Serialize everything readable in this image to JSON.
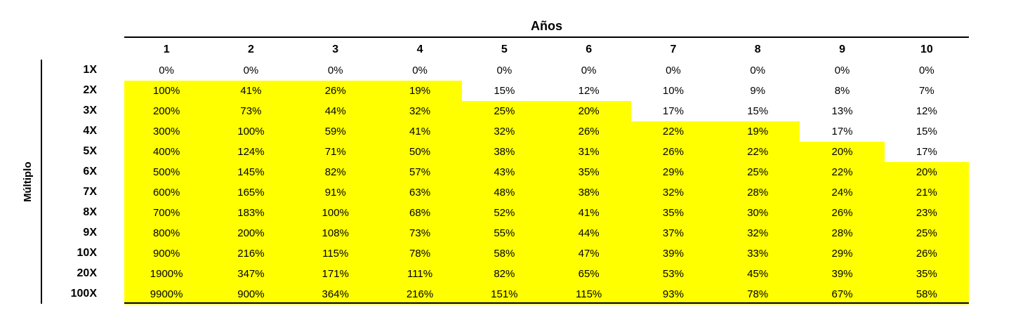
{
  "chart_data": {
    "type": "table",
    "title": "Años",
    "row_axis_label": "Múltiplo",
    "columns": [
      "1",
      "2",
      "3",
      "4",
      "5",
      "6",
      "7",
      "8",
      "9",
      "10"
    ],
    "rows": [
      {
        "label": "1X",
        "values": [
          "0%",
          "0%",
          "0%",
          "0%",
          "0%",
          "0%",
          "0%",
          "0%",
          "0%",
          "0%"
        ],
        "highlighted_cols": 0
      },
      {
        "label": "2X",
        "values": [
          "100%",
          "41%",
          "26%",
          "19%",
          "15%",
          "12%",
          "10%",
          "9%",
          "8%",
          "7%"
        ],
        "highlighted_cols": 4
      },
      {
        "label": "3X",
        "values": [
          "200%",
          "73%",
          "44%",
          "32%",
          "25%",
          "20%",
          "17%",
          "15%",
          "13%",
          "12%"
        ],
        "highlighted_cols": 6
      },
      {
        "label": "4X",
        "values": [
          "300%",
          "100%",
          "59%",
          "41%",
          "32%",
          "26%",
          "22%",
          "19%",
          "17%",
          "15%"
        ],
        "highlighted_cols": 8
      },
      {
        "label": "5X",
        "values": [
          "400%",
          "124%",
          "71%",
          "50%",
          "38%",
          "31%",
          "26%",
          "22%",
          "20%",
          "17%"
        ],
        "highlighted_cols": 9
      },
      {
        "label": "6X",
        "values": [
          "500%",
          "145%",
          "82%",
          "57%",
          "43%",
          "35%",
          "29%",
          "25%",
          "22%",
          "20%"
        ],
        "highlighted_cols": 10
      },
      {
        "label": "7X",
        "values": [
          "600%",
          "165%",
          "91%",
          "63%",
          "48%",
          "38%",
          "32%",
          "28%",
          "24%",
          "21%"
        ],
        "highlighted_cols": 10
      },
      {
        "label": "8X",
        "values": [
          "700%",
          "183%",
          "100%",
          "68%",
          "52%",
          "41%",
          "35%",
          "30%",
          "26%",
          "23%"
        ],
        "highlighted_cols": 10
      },
      {
        "label": "9X",
        "values": [
          "800%",
          "200%",
          "108%",
          "73%",
          "55%",
          "44%",
          "37%",
          "32%",
          "28%",
          "25%"
        ],
        "highlighted_cols": 10
      },
      {
        "label": "10X",
        "values": [
          "900%",
          "216%",
          "115%",
          "78%",
          "58%",
          "47%",
          "39%",
          "33%",
          "29%",
          "26%"
        ],
        "highlighted_cols": 10
      },
      {
        "label": "20X",
        "values": [
          "1900%",
          "347%",
          "171%",
          "111%",
          "82%",
          "65%",
          "53%",
          "45%",
          "39%",
          "35%"
        ],
        "highlighted_cols": 10
      },
      {
        "label": "100X",
        "values": [
          "9900%",
          "900%",
          "364%",
          "216%",
          "151%",
          "115%",
          "93%",
          "78%",
          "67%",
          "58%"
        ],
        "highlighted_cols": 10
      }
    ]
  },
  "colors": {
    "highlight": "#FFFF00",
    "text": "#000000",
    "background": "#FFFFFF"
  }
}
